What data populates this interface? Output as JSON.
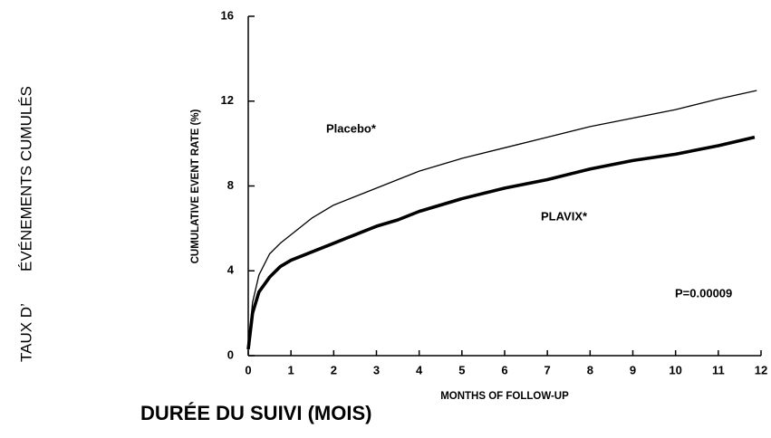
{
  "chart_data": {
    "type": "line",
    "side_label_left": "TAUX D’",
    "side_label_right": "ÉVÉNEMENTS CUMULÉS",
    "bottom_title": "DURÉE DU SUIVI (MOIS)",
    "y_label": "CUMULATIVE EVENT RATE (%)",
    "x_label": "MONTHS OF FOLLOW-UP",
    "p_value_label": "P=0.00009",
    "xlim": [
      0,
      12
    ],
    "xticks": [
      0,
      1,
      2,
      3,
      4,
      5,
      6,
      7,
      8,
      9,
      10,
      11,
      12
    ],
    "ylim": [
      0,
      16
    ],
    "yticks": [
      0,
      4,
      8,
      12,
      16
    ],
    "series": [
      {
        "name": "Placebo*",
        "color": "#000000",
        "x": [
          0,
          0.1,
          0.25,
          0.5,
          0.75,
          1,
          1.5,
          2,
          2.5,
          3,
          3.5,
          4,
          5,
          6,
          7,
          8,
          9,
          10,
          11,
          11.9
        ],
        "values": [
          0.3,
          2.5,
          3.8,
          4.8,
          5.3,
          5.7,
          6.5,
          7.1,
          7.5,
          7.9,
          8.3,
          8.7,
          9.3,
          9.8,
          10.3,
          10.8,
          11.2,
          11.6,
          12.1,
          12.5
        ]
      },
      {
        "name": "PLAVIX*",
        "color": "#000000",
        "x": [
          0,
          0.1,
          0.25,
          0.5,
          0.75,
          1,
          1.5,
          2,
          2.5,
          3,
          3.5,
          4,
          5,
          6,
          7,
          8,
          9,
          10,
          11,
          11.85
        ],
        "values": [
          0.3,
          2.0,
          3.0,
          3.7,
          4.2,
          4.5,
          4.9,
          5.3,
          5.7,
          6.1,
          6.4,
          6.8,
          7.4,
          7.9,
          8.3,
          8.8,
          9.2,
          9.5,
          9.9,
          10.3
        ]
      }
    ]
  }
}
